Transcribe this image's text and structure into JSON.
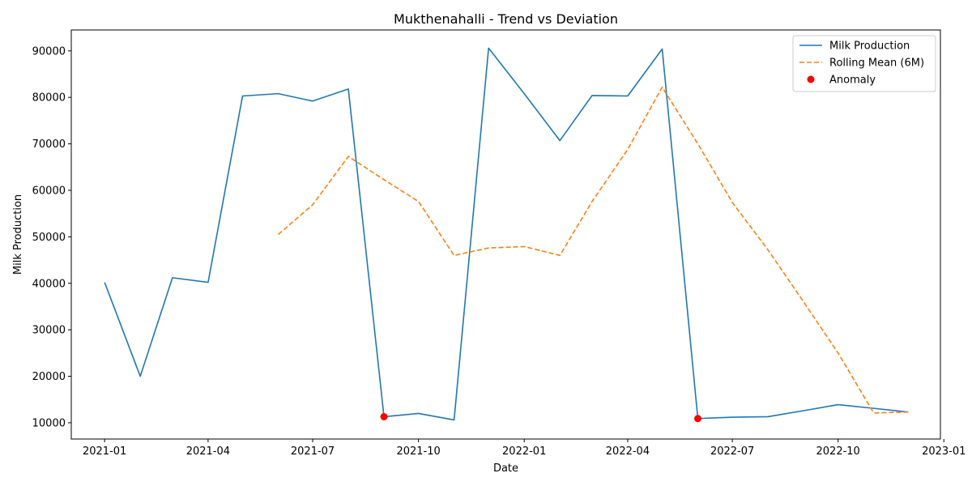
{
  "chart_data": {
    "type": "line",
    "title": "Mukthenahalli - Trend vs Deviation",
    "xlabel": "Date",
    "ylabel": "Milk Production",
    "x_axis_type": "date",
    "xlim": [
      "2020-12-03",
      "2022-12-29"
    ],
    "ylim": [
      6500,
      94500
    ],
    "x_ticks": [
      {
        "value": "2021-01-01",
        "label": "2021-01"
      },
      {
        "value": "2021-04-01",
        "label": "2021-04"
      },
      {
        "value": "2021-07-01",
        "label": "2021-07"
      },
      {
        "value": "2021-10-01",
        "label": "2021-10"
      },
      {
        "value": "2022-01-01",
        "label": "2022-01"
      },
      {
        "value": "2022-04-01",
        "label": "2022-04"
      },
      {
        "value": "2022-07-01",
        "label": "2022-07"
      },
      {
        "value": "2022-10-01",
        "label": "2022-10"
      },
      {
        "value": "2023-01-01",
        "label": "2023-01"
      }
    ],
    "y_ticks": [
      {
        "value": 10000,
        "label": "10000"
      },
      {
        "value": 20000,
        "label": "20000"
      },
      {
        "value": 30000,
        "label": "30000"
      },
      {
        "value": 40000,
        "label": "40000"
      },
      {
        "value": 50000,
        "label": "50000"
      },
      {
        "value": 60000,
        "label": "60000"
      },
      {
        "value": 70000,
        "label": "70000"
      },
      {
        "value": 80000,
        "label": "80000"
      },
      {
        "value": 90000,
        "label": "90000"
      }
    ],
    "grid": false,
    "legend_position": "top-right",
    "series": [
      {
        "name": "Milk Production",
        "kind": "line",
        "style": "solid",
        "color": "#1f77b4",
        "points": [
          {
            "x": "2021-01-01",
            "y": 40200
          },
          {
            "x": "2021-02-01",
            "y": 20000
          },
          {
            "x": "2021-03-01",
            "y": 41200
          },
          {
            "x": "2021-04-01",
            "y": 40200
          },
          {
            "x": "2021-05-01",
            "y": 80300
          },
          {
            "x": "2021-06-01",
            "y": 80800
          },
          {
            "x": "2021-07-01",
            "y": 79200
          },
          {
            "x": "2021-08-01",
            "y": 81800
          },
          {
            "x": "2021-09-01",
            "y": 11300
          },
          {
            "x": "2021-10-01",
            "y": 12000
          },
          {
            "x": "2021-11-01",
            "y": 10600
          },
          {
            "x": "2021-12-01",
            "y": 90600
          },
          {
            "x": "2022-01-01",
            "y": 80800
          },
          {
            "x": "2022-02-01",
            "y": 70700
          },
          {
            "x": "2022-03-01",
            "y": 80400
          },
          {
            "x": "2022-04-01",
            "y": 80300
          },
          {
            "x": "2022-05-01",
            "y": 90400
          },
          {
            "x": "2022-06-01",
            "y": 10900
          },
          {
            "x": "2022-07-01",
            "y": 11200
          },
          {
            "x": "2022-08-01",
            "y": 11300
          },
          {
            "x": "2022-09-01",
            "y": 12600
          },
          {
            "x": "2022-10-01",
            "y": 13900
          },
          {
            "x": "2022-11-01",
            "y": 13100
          },
          {
            "x": "2022-12-01",
            "y": 12300
          }
        ]
      },
      {
        "name": "Rolling Mean (6M)",
        "kind": "line",
        "style": "dashed",
        "color": "#ff7f0e",
        "points": [
          {
            "x": "2021-06-01",
            "y": 50500
          },
          {
            "x": "2021-07-01",
            "y": 56900
          },
          {
            "x": "2021-08-01",
            "y": 67300
          },
          {
            "x": "2021-09-01",
            "y": 62300
          },
          {
            "x": "2021-10-01",
            "y": 57600
          },
          {
            "x": "2021-11-01",
            "y": 46000
          },
          {
            "x": "2021-12-01",
            "y": 47600
          },
          {
            "x": "2022-01-01",
            "y": 47900
          },
          {
            "x": "2022-02-01",
            "y": 46000
          },
          {
            "x": "2022-03-01",
            "y": 57600
          },
          {
            "x": "2022-04-01",
            "y": 68800
          },
          {
            "x": "2022-05-01",
            "y": 82200
          },
          {
            "x": "2022-06-01",
            "y": 70000
          },
          {
            "x": "2022-07-01",
            "y": 57400
          },
          {
            "x": "2022-08-01",
            "y": 47200
          },
          {
            "x": "2022-09-01",
            "y": 36000
          },
          {
            "x": "2022-10-01",
            "y": 25000
          },
          {
            "x": "2022-11-01",
            "y": 12100
          },
          {
            "x": "2022-12-01",
            "y": 12300
          }
        ]
      },
      {
        "name": "Anomaly",
        "kind": "scatter",
        "color": "#ff0000",
        "points": [
          {
            "x": "2021-09-01",
            "y": 11300
          },
          {
            "x": "2022-06-01",
            "y": 10900
          }
        ]
      }
    ]
  }
}
